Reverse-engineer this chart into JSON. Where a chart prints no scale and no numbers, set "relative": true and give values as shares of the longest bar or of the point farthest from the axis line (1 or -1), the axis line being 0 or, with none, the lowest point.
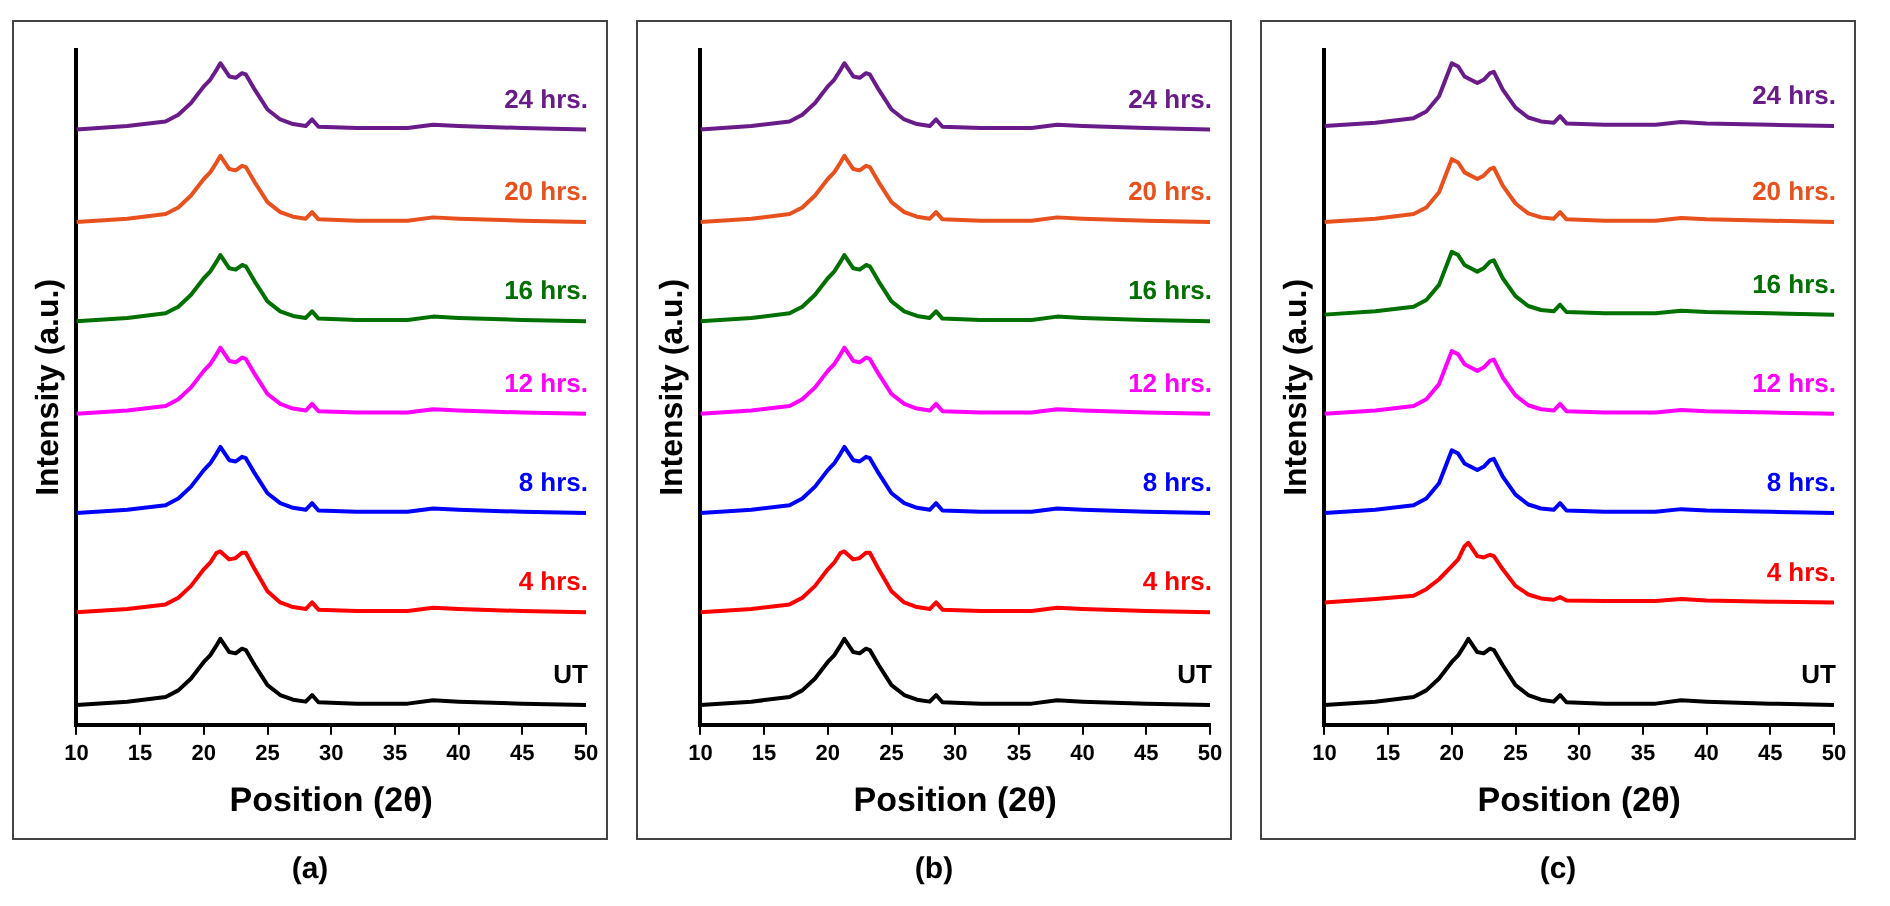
{
  "chart_data": [
    {
      "type": "line",
      "relative": true,
      "xlabel": "Position (2θ)",
      "ylabel": "Intensity (a.u.)",
      "xlim": [
        10,
        50
      ],
      "xticks": [
        10,
        15,
        20,
        25,
        30,
        35,
        40,
        45,
        50
      ],
      "tick_labels": "x",
      "grid": false,
      "legend": false,
      "marker": "none",
      "line_style": "solid",
      "annotations": [
        "(a)"
      ],
      "x": [
        10,
        14,
        17,
        18,
        19,
        20,
        20.5,
        21,
        21.3,
        22,
        22.5,
        23,
        23.3,
        24,
        25,
        26,
        27,
        28,
        28.5,
        29,
        32,
        36,
        38,
        40,
        45,
        50
      ],
      "series": [
        {
          "name": "UT",
          "color": "#000000",
          "values": [
            0.03,
            0.035,
            0.042,
            0.052,
            0.07,
            0.095,
            0.105,
            0.12,
            0.13,
            0.11,
            0.108,
            0.115,
            0.113,
            0.09,
            0.06,
            0.045,
            0.038,
            0.035,
            0.045,
            0.034,
            0.032,
            0.032,
            0.037,
            0.035,
            0.032,
            0.03
          ]
        },
        {
          "name": "4 hrs.",
          "color": "#ff0000",
          "values": [
            0.17,
            0.175,
            0.182,
            0.192,
            0.21,
            0.235,
            0.245,
            0.26,
            0.262,
            0.25,
            0.252,
            0.26,
            0.26,
            0.235,
            0.202,
            0.185,
            0.178,
            0.175,
            0.185,
            0.174,
            0.172,
            0.172,
            0.177,
            0.175,
            0.172,
            0.17
          ]
        },
        {
          "name": "8 hrs.",
          "color": "#0000ff",
          "values": [
            0.32,
            0.325,
            0.332,
            0.342,
            0.36,
            0.385,
            0.395,
            0.41,
            0.42,
            0.4,
            0.398,
            0.405,
            0.403,
            0.38,
            0.35,
            0.335,
            0.328,
            0.325,
            0.335,
            0.324,
            0.322,
            0.322,
            0.327,
            0.325,
            0.322,
            0.32
          ]
        },
        {
          "name": "12 hrs.",
          "color": "#ff00ff",
          "values": [
            0.47,
            0.475,
            0.482,
            0.492,
            0.51,
            0.535,
            0.545,
            0.56,
            0.57,
            0.55,
            0.548,
            0.555,
            0.553,
            0.53,
            0.5,
            0.485,
            0.478,
            0.475,
            0.485,
            0.474,
            0.472,
            0.472,
            0.477,
            0.475,
            0.472,
            0.47
          ]
        },
        {
          "name": "16 hrs.",
          "color": "#007000",
          "values": [
            0.61,
            0.615,
            0.622,
            0.632,
            0.65,
            0.675,
            0.685,
            0.7,
            0.71,
            0.69,
            0.688,
            0.695,
            0.693,
            0.67,
            0.64,
            0.625,
            0.618,
            0.615,
            0.625,
            0.614,
            0.612,
            0.612,
            0.617,
            0.615,
            0.612,
            0.61
          ]
        },
        {
          "name": "20 hrs.",
          "color": "#e8501e",
          "values": [
            0.76,
            0.765,
            0.772,
            0.782,
            0.8,
            0.825,
            0.835,
            0.85,
            0.86,
            0.84,
            0.838,
            0.845,
            0.843,
            0.82,
            0.79,
            0.775,
            0.768,
            0.765,
            0.775,
            0.764,
            0.762,
            0.762,
            0.767,
            0.765,
            0.762,
            0.76
          ]
        },
        {
          "name": "24 hrs.",
          "color": "#6a1b8a",
          "values": [
            0.9,
            0.905,
            0.912,
            0.922,
            0.94,
            0.965,
            0.975,
            0.99,
            1,
            0.98,
            0.978,
            0.985,
            0.983,
            0.96,
            0.93,
            0.915,
            0.908,
            0.905,
            0.915,
            0.904,
            0.902,
            0.902,
            0.907,
            0.905,
            0.902,
            0.9
          ]
        }
      ]
    },
    {
      "type": "line",
      "relative": true,
      "xlabel": "Position (2θ)",
      "ylabel": "Intensity (a.u.)",
      "xlim": [
        10,
        50
      ],
      "xticks": [
        10,
        15,
        20,
        25,
        30,
        35,
        40,
        45,
        50
      ],
      "tick_labels": "x",
      "grid": false,
      "legend": false,
      "marker": "none",
      "line_style": "solid",
      "annotations": [
        "(b)"
      ],
      "x": [
        10,
        14,
        17,
        18,
        19,
        20,
        20.5,
        21,
        21.3,
        22,
        22.5,
        23,
        23.3,
        24,
        25,
        26,
        27,
        28,
        28.5,
        29,
        32,
        36,
        38,
        40,
        45,
        50
      ],
      "series": [
        {
          "name": "UT",
          "color": "#000000",
          "values": [
            0.03,
            0.035,
            0.042,
            0.052,
            0.07,
            0.095,
            0.105,
            0.12,
            0.13,
            0.11,
            0.108,
            0.115,
            0.113,
            0.09,
            0.06,
            0.045,
            0.038,
            0.035,
            0.045,
            0.034,
            0.032,
            0.032,
            0.037,
            0.035,
            0.032,
            0.03
          ]
        },
        {
          "name": "4 hrs.",
          "color": "#ff0000",
          "values": [
            0.17,
            0.175,
            0.182,
            0.192,
            0.21,
            0.235,
            0.245,
            0.26,
            0.262,
            0.25,
            0.252,
            0.26,
            0.26,
            0.235,
            0.202,
            0.185,
            0.178,
            0.175,
            0.185,
            0.174,
            0.172,
            0.172,
            0.177,
            0.175,
            0.172,
            0.17
          ]
        },
        {
          "name": "8 hrs.",
          "color": "#0000ff",
          "values": [
            0.32,
            0.325,
            0.332,
            0.342,
            0.36,
            0.385,
            0.395,
            0.41,
            0.42,
            0.4,
            0.398,
            0.405,
            0.403,
            0.38,
            0.35,
            0.335,
            0.328,
            0.325,
            0.335,
            0.324,
            0.322,
            0.322,
            0.327,
            0.325,
            0.322,
            0.32
          ]
        },
        {
          "name": "12 hrs.",
          "color": "#ff00ff",
          "values": [
            0.47,
            0.475,
            0.482,
            0.492,
            0.51,
            0.535,
            0.545,
            0.56,
            0.57,
            0.55,
            0.548,
            0.555,
            0.553,
            0.53,
            0.5,
            0.485,
            0.478,
            0.475,
            0.485,
            0.474,
            0.472,
            0.472,
            0.477,
            0.475,
            0.472,
            0.47
          ]
        },
        {
          "name": "16 hrs.",
          "color": "#007000",
          "values": [
            0.61,
            0.615,
            0.622,
            0.632,
            0.65,
            0.675,
            0.685,
            0.7,
            0.71,
            0.69,
            0.688,
            0.695,
            0.693,
            0.67,
            0.64,
            0.625,
            0.618,
            0.615,
            0.625,
            0.614,
            0.612,
            0.612,
            0.617,
            0.615,
            0.612,
            0.61
          ]
        },
        {
          "name": "20 hrs.",
          "color": "#e8501e",
          "values": [
            0.76,
            0.765,
            0.772,
            0.782,
            0.8,
            0.825,
            0.835,
            0.85,
            0.86,
            0.84,
            0.838,
            0.845,
            0.843,
            0.82,
            0.79,
            0.775,
            0.768,
            0.765,
            0.775,
            0.764,
            0.762,
            0.762,
            0.767,
            0.765,
            0.762,
            0.76
          ]
        },
        {
          "name": "24 hrs.",
          "color": "#6a1b8a",
          "values": [
            0.9,
            0.905,
            0.912,
            0.922,
            0.94,
            0.965,
            0.975,
            0.99,
            1,
            0.98,
            0.978,
            0.985,
            0.983,
            0.96,
            0.93,
            0.915,
            0.908,
            0.905,
            0.915,
            0.904,
            0.902,
            0.902,
            0.907,
            0.905,
            0.902,
            0.9
          ]
        }
      ]
    },
    {
      "type": "line",
      "relative": true,
      "xlabel": "Position (2θ)",
      "ylabel": "Intensity (a.u.)",
      "xlim": [
        10,
        50
      ],
      "xticks": [
        10,
        15,
        20,
        25,
        30,
        35,
        40,
        45,
        50
      ],
      "tick_labels": "x",
      "grid": false,
      "legend": false,
      "marker": "none",
      "line_style": "solid",
      "annotations": [
        "(c)"
      ],
      "x": [
        10,
        14,
        17,
        18,
        19,
        20,
        20.5,
        21,
        21.3,
        22,
        22.5,
        23,
        23.3,
        24,
        25,
        26,
        27,
        28,
        28.5,
        29,
        32,
        36,
        38,
        40,
        45,
        50
      ],
      "series": [
        {
          "name": "UT",
          "color": "#000000",
          "values": [
            0.03,
            0.035,
            0.042,
            0.052,
            0.07,
            0.095,
            0.105,
            0.12,
            0.13,
            0.11,
            0.108,
            0.115,
            0.113,
            0.09,
            0.06,
            0.045,
            0.038,
            0.035,
            0.045,
            0.034,
            0.032,
            0.032,
            0.037,
            0.035,
            0.032,
            0.03
          ]
        },
        {
          "name": "4 hrs.",
          "color": "#ff0000",
          "values": [
            0.185,
            0.19,
            0.195,
            0.205,
            0.22,
            0.24,
            0.25,
            0.27,
            0.275,
            0.255,
            0.253,
            0.257,
            0.255,
            0.235,
            0.21,
            0.197,
            0.191,
            0.189,
            0.193,
            0.188,
            0.187,
            0.187,
            0.19,
            0.188,
            0.186,
            0.185
          ]
        },
        {
          "name": "8 hrs.",
          "color": "#0000ff",
          "values": [
            0.32,
            0.325,
            0.332,
            0.342,
            0.365,
            0.415,
            0.41,
            0.395,
            0.392,
            0.385,
            0.39,
            0.4,
            0.402,
            0.375,
            0.348,
            0.333,
            0.327,
            0.325,
            0.335,
            0.324,
            0.322,
            0.322,
            0.326,
            0.324,
            0.322,
            0.32
          ]
        },
        {
          "name": "12 hrs.",
          "color": "#ff00ff",
          "values": [
            0.47,
            0.475,
            0.482,
            0.492,
            0.515,
            0.565,
            0.56,
            0.545,
            0.542,
            0.535,
            0.54,
            0.55,
            0.552,
            0.525,
            0.498,
            0.483,
            0.477,
            0.475,
            0.485,
            0.474,
            0.472,
            0.472,
            0.476,
            0.474,
            0.472,
            0.47
          ]
        },
        {
          "name": "16 hrs.",
          "color": "#007000",
          "values": [
            0.62,
            0.625,
            0.632,
            0.642,
            0.665,
            0.715,
            0.71,
            0.695,
            0.692,
            0.685,
            0.69,
            0.7,
            0.702,
            0.675,
            0.648,
            0.633,
            0.627,
            0.625,
            0.635,
            0.624,
            0.622,
            0.622,
            0.626,
            0.624,
            0.622,
            0.62
          ]
        },
        {
          "name": "20 hrs.",
          "color": "#e8501e",
          "values": [
            0.76,
            0.765,
            0.772,
            0.782,
            0.805,
            0.855,
            0.85,
            0.835,
            0.832,
            0.825,
            0.83,
            0.84,
            0.842,
            0.815,
            0.788,
            0.773,
            0.767,
            0.765,
            0.775,
            0.764,
            0.762,
            0.762,
            0.766,
            0.764,
            0.762,
            0.76
          ]
        },
        {
          "name": "24 hrs.",
          "color": "#6a1b8a",
          "values": [
            0.905,
            0.91,
            0.917,
            0.927,
            0.95,
            1,
            0.995,
            0.98,
            0.977,
            0.97,
            0.975,
            0.985,
            0.987,
            0.96,
            0.933,
            0.918,
            0.912,
            0.91,
            0.92,
            0.909,
            0.907,
            0.907,
            0.911,
            0.909,
            0.907,
            0.905
          ]
        }
      ]
    }
  ]
}
